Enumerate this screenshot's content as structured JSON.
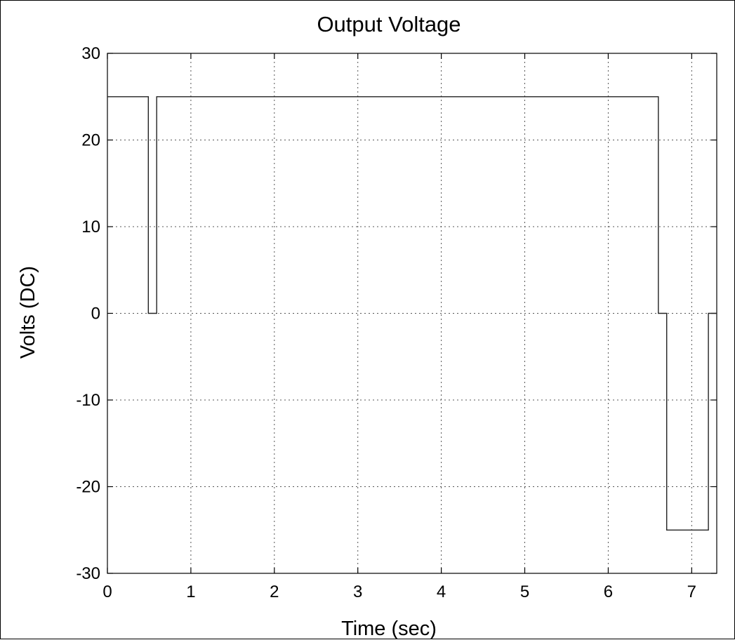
{
  "chart_data": {
    "type": "line",
    "title": "Output Voltage",
    "xlabel": "Time (sec)",
    "ylabel": "Volts (DC)",
    "xlim": [
      0,
      7.3
    ],
    "ylim": [
      -30,
      30
    ],
    "xticks": [
      0,
      1,
      2,
      3,
      4,
      5,
      6,
      7
    ],
    "yticks": [
      -30,
      -20,
      -10,
      0,
      10,
      20,
      30
    ],
    "xtick_labels": [
      "0",
      "1",
      "2",
      "3",
      "4",
      "5",
      "6",
      "7"
    ],
    "ytick_labels": [
      "-30",
      "-20",
      "-10",
      "0",
      "10",
      "20",
      "30"
    ],
    "grid": true,
    "series": [
      {
        "style": "step",
        "color": "#222222",
        "x": [
          0,
          0.49,
          0.49,
          0.59,
          0.59,
          6.6,
          6.6,
          6.7,
          6.7,
          7.2,
          7.2,
          7.3
        ],
        "y": [
          25,
          25,
          0,
          0,
          25,
          25,
          0,
          0,
          -25,
          -25,
          0,
          0
        ]
      }
    ]
  }
}
